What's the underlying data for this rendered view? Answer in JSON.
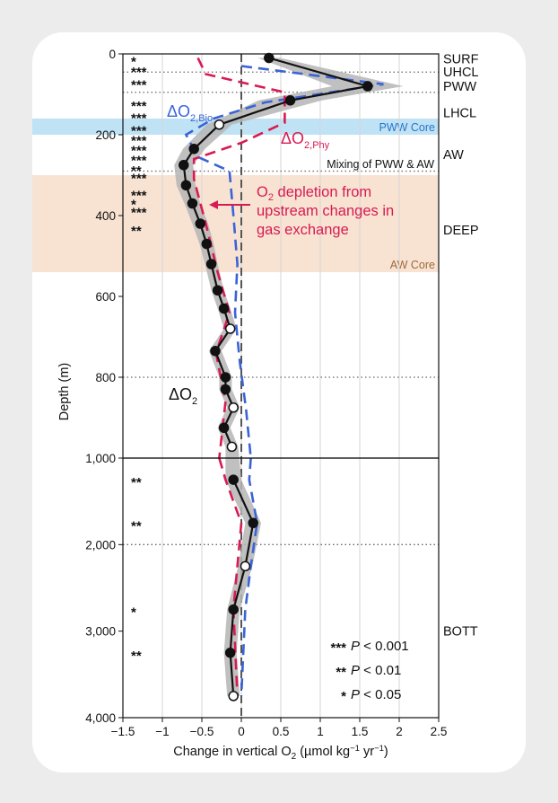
{
  "chart_data": {
    "type": "line",
    "xlabel": "Change in vertical O",
    "xlabel_sub": "2",
    "xlabel_units": " (µmol kg",
    "xlabel_units_exp1": "−1",
    "xlabel_units_mid": " yr",
    "xlabel_units_exp2": "−1",
    "xlabel_close": ")",
    "ylabel": "Depth (m)",
    "xlim": [
      -1.5,
      2.5
    ],
    "x_ticks": [
      -1.5,
      -1,
      -0.5,
      0,
      0.5,
      1,
      1.5,
      2,
      2.5
    ],
    "x_tick_labels": [
      "−1.5",
      "−1",
      "−0.5",
      "0",
      "0.5",
      "1",
      "1.5",
      "2",
      "2.5"
    ],
    "upper_panel": {
      "ylim": [
        0,
        1000
      ],
      "y_ticks": [
        0,
        200,
        400,
        600,
        800,
        1000
      ],
      "y_tick_labels": [
        "0",
        "200",
        "400",
        "600",
        "800",
        "1,000"
      ]
    },
    "lower_panel": {
      "ylim": [
        1000,
        4000
      ],
      "y_ticks": [
        1000,
        2000,
        3000,
        4000
      ],
      "y_tick_labels": [
        "1,000",
        "2,000",
        "3,000",
        "4,000"
      ]
    },
    "grid": true,
    "series": [
      {
        "name": "ΔO2",
        "style": "black line with markers and grey uncertainty band",
        "color": "#111111",
        "band_color": "#b5b5b5",
        "points": [
          {
            "x": 0.35,
            "depth": 10,
            "marker": "filled"
          },
          {
            "x": 1.6,
            "depth": 80,
            "marker": "filled"
          },
          {
            "x": 0.62,
            "depth": 115,
            "marker": "filled"
          },
          {
            "x": -0.28,
            "depth": 175,
            "marker": "open"
          },
          {
            "x": -0.6,
            "depth": 235,
            "marker": "filled"
          },
          {
            "x": -0.73,
            "depth": 275,
            "marker": "filled"
          },
          {
            "x": -0.7,
            "depth": 325,
            "marker": "filled"
          },
          {
            "x": -0.62,
            "depth": 370,
            "marker": "filled"
          },
          {
            "x": -0.52,
            "depth": 420,
            "marker": "filled"
          },
          {
            "x": -0.44,
            "depth": 470,
            "marker": "filled"
          },
          {
            "x": -0.38,
            "depth": 520,
            "marker": "filled"
          },
          {
            "x": -0.3,
            "depth": 585,
            "marker": "filled"
          },
          {
            "x": -0.22,
            "depth": 630,
            "marker": "filled"
          },
          {
            "x": -0.14,
            "depth": 680,
            "marker": "open"
          },
          {
            "x": -0.33,
            "depth": 735,
            "marker": "filled"
          },
          {
            "x": -0.2,
            "depth": 800,
            "marker": "filled"
          },
          {
            "x": -0.2,
            "depth": 830,
            "marker": "filled"
          },
          {
            "x": -0.1,
            "depth": 875,
            "marker": "open"
          },
          {
            "x": -0.22,
            "depth": 925,
            "marker": "filled"
          },
          {
            "x": -0.12,
            "depth": 972,
            "marker": "open"
          },
          {
            "x": -0.1,
            "depth": 1250,
            "marker": "filled"
          },
          {
            "x": 0.15,
            "depth": 1750,
            "marker": "filled"
          },
          {
            "x": 0.05,
            "depth": 2250,
            "marker": "open"
          },
          {
            "x": -0.1,
            "depth": 2750,
            "marker": "filled"
          },
          {
            "x": -0.14,
            "depth": 3250,
            "marker": "filled"
          },
          {
            "x": -0.1,
            "depth": 3750,
            "marker": "open"
          }
        ],
        "band_halfwidth": [
          0.14,
          0.45,
          0.4,
          0.16,
          0.14,
          0.12,
          0.12,
          0.1,
          0.1,
          0.09,
          0.08,
          0.08,
          0.08,
          0.08,
          0.08,
          0.08,
          0.08,
          0.08,
          0.08,
          0.08,
          0.1,
          0.1,
          0.09,
          0.08,
          0.08,
          0.08
        ]
      },
      {
        "name": "ΔO2,Bio",
        "label_main": "ΔO",
        "label_sub": "2,Bio",
        "style": "dashed",
        "color": "#3b63d6",
        "points": [
          {
            "x": 0.0,
            "depth": 30
          },
          {
            "x": 1.8,
            "depth": 75
          },
          {
            "x": 0.3,
            "depth": 120
          },
          {
            "x": -0.35,
            "depth": 160
          },
          {
            "x": -0.7,
            "depth": 200
          },
          {
            "x": -0.55,
            "depth": 255
          },
          {
            "x": -0.15,
            "depth": 290
          },
          {
            "x": -0.1,
            "depth": 400
          },
          {
            "x": -0.05,
            "depth": 520
          },
          {
            "x": -0.08,
            "depth": 640
          },
          {
            "x": -0.02,
            "depth": 760
          },
          {
            "x": 0.06,
            "depth": 880
          },
          {
            "x": 0.12,
            "depth": 1000
          },
          {
            "x": 0.1,
            "depth": 1250
          },
          {
            "x": 0.2,
            "depth": 1750
          },
          {
            "x": 0.12,
            "depth": 2250
          },
          {
            "x": 0.05,
            "depth": 2750
          },
          {
            "x": 0.0,
            "depth": 3750
          }
        ]
      },
      {
        "name": "ΔO2,Phy",
        "label_main": "ΔO",
        "label_sub": "2,Phy",
        "style": "dashed",
        "color": "#d81b52",
        "points": [
          {
            "x": -0.55,
            "depth": 10
          },
          {
            "x": -0.45,
            "depth": 50
          },
          {
            "x": 0.55,
            "depth": 95
          },
          {
            "x": 0.55,
            "depth": 170
          },
          {
            "x": 0.0,
            "depth": 220
          },
          {
            "x": -0.6,
            "depth": 260
          },
          {
            "x": -0.6,
            "depth": 310
          },
          {
            "x": -0.45,
            "depth": 420
          },
          {
            "x": -0.3,
            "depth": 540
          },
          {
            "x": -0.15,
            "depth": 640
          },
          {
            "x": -0.32,
            "depth": 740
          },
          {
            "x": -0.2,
            "depth": 860
          },
          {
            "x": -0.28,
            "depth": 1000
          },
          {
            "x": -0.2,
            "depth": 1250
          },
          {
            "x": 0.0,
            "depth": 1750
          },
          {
            "x": -0.05,
            "depth": 2250
          },
          {
            "x": -0.1,
            "depth": 2750
          },
          {
            "x": -0.05,
            "depth": 3750
          }
        ]
      }
    ],
    "significance": [
      {
        "label": "*",
        "depth": 12
      },
      {
        "label": "***",
        "depth": 38
      },
      {
        "label": "***",
        "depth": 70
      },
      {
        "label": "***",
        "depth": 122
      },
      {
        "label": "***",
        "depth": 152
      },
      {
        "label": "***",
        "depth": 183
      },
      {
        "label": "***",
        "depth": 208
      },
      {
        "label": "***",
        "depth": 232
      },
      {
        "label": "***",
        "depth": 257
      },
      {
        "label": "**",
        "depth": 282
      },
      {
        "label": "***",
        "depth": 301
      },
      {
        "label": "***",
        "depth": 343
      },
      {
        "label": "*",
        "depth": 365
      },
      {
        "label": "***",
        "depth": 386
      },
      {
        "label": "**",
        "depth": 431
      },
      {
        "label": "**",
        "depth": 1250
      },
      {
        "label": "**",
        "depth": 1750
      },
      {
        "label": "*",
        "depth": 2750
      },
      {
        "label": "**",
        "depth": 3250
      }
    ],
    "layers": [
      {
        "label": "SURF",
        "depth": 12
      },
      {
        "label": "UHCL",
        "depth": 44
      },
      {
        "label": "PWW",
        "depth": 80
      },
      {
        "label": "LHCL",
        "depth": 145
      },
      {
        "label": "AW",
        "depth": 249
      },
      {
        "label": "DEEP",
        "depth": 435
      },
      {
        "label": "BOTT",
        "depth": 3000
      }
    ],
    "boundaries": [
      45,
      95,
      290,
      800,
      2000
    ],
    "bands": [
      {
        "name": "pww-core-band",
        "from": 160,
        "to": 200,
        "color": "#bfe3f5",
        "label": "PWW Core",
        "label_color": "#2a73d0"
      },
      {
        "name": "aw-core-band",
        "from": 300,
        "to": 540,
        "color": "#f8e3d3",
        "label": "AW Core",
        "label_color": "#9b6a3a"
      }
    ],
    "annotations": {
      "mixing": "Mixing of PWW & AW",
      "depletion": [
        "depletion from",
        "upstream changes in",
        "gas exchange"
      ],
      "depletion_prefix": "O",
      "depletion_sub": "2",
      "series_label": "ΔO",
      "series_label_sub": "2"
    },
    "legend": [
      {
        "stars": "***",
        "text": " < 0.001"
      },
      {
        "stars": "**",
        "text": " < 0.01"
      },
      {
        "stars": "*",
        "text": " < 0.05"
      }
    ],
    "legend_symbol": "P"
  }
}
